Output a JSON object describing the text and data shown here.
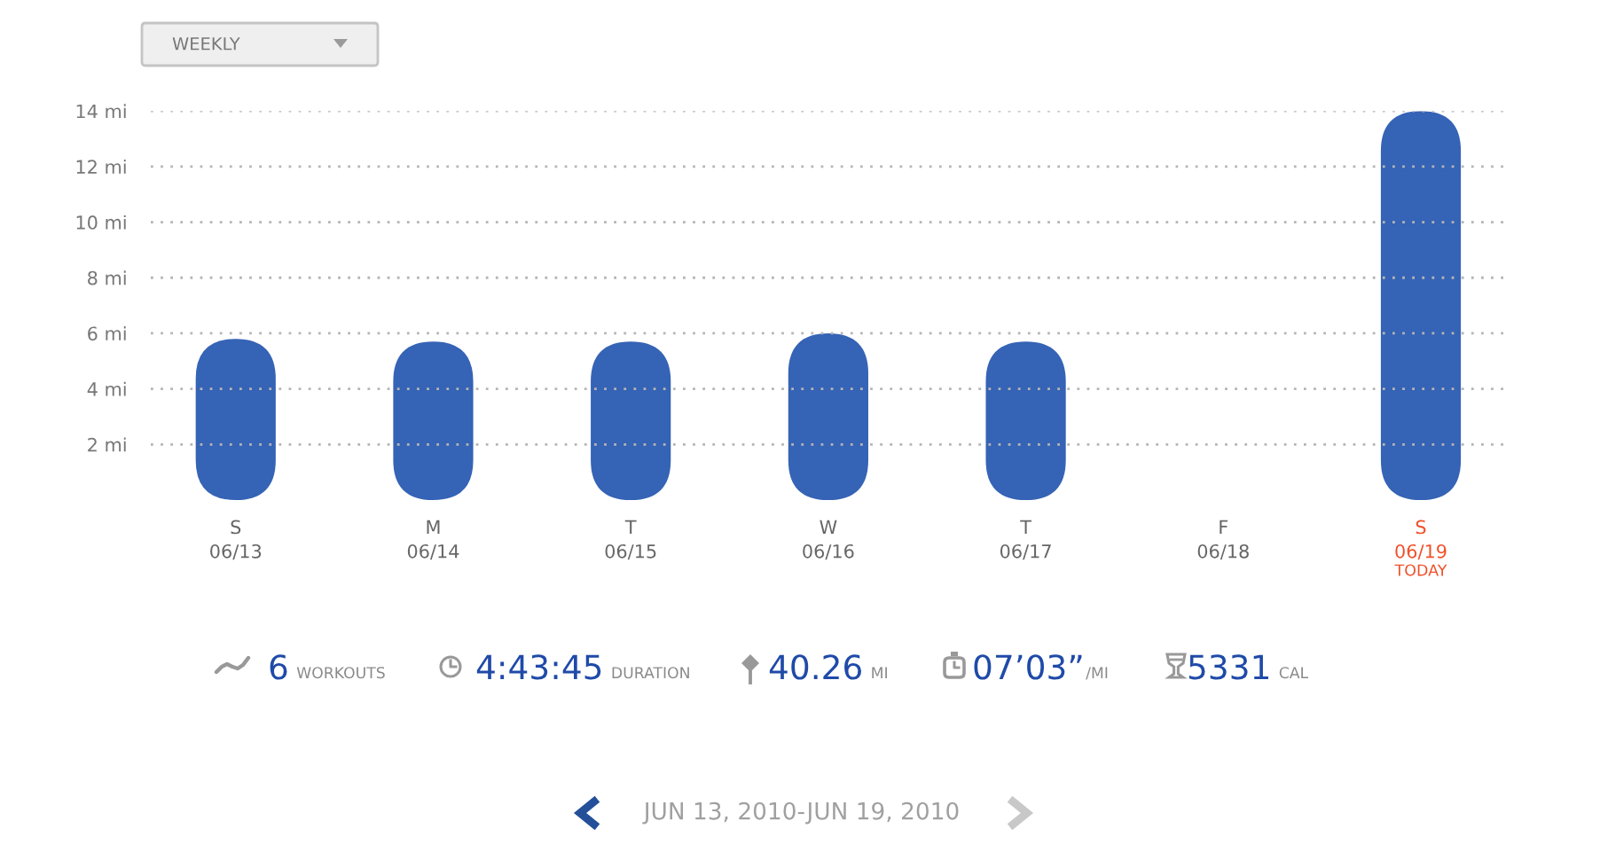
{
  "chart_data": {
    "type": "bar",
    "categories": [
      "S\n06/13",
      "M\n06/14",
      "T\n06/15",
      "W\n06/16",
      "T\n06/17",
      "F\n06/18",
      "S\n06/19"
    ],
    "values": [
      5.8,
      5.7,
      5.7,
      6.0,
      5.7,
      null,
      14.0
    ],
    "color": "#3563b5",
    "ylim": [
      0,
      14
    ],
    "yticks": [
      {
        "value": 2,
        "label": "2 mi"
      },
      {
        "value": 4,
        "label": "4 mi"
      },
      {
        "value": 6,
        "label": "6 mi"
      },
      {
        "value": 8,
        "label": "8 mi"
      },
      {
        "value": 10,
        "label": "10 mi"
      },
      {
        "value": 12,
        "label": "12 mi"
      },
      {
        "value": 14,
        "label": "14 mi"
      }
    ],
    "grid": "y",
    "annotations": [
      "WEEKLY",
      "6",
      "WORKOUTS",
      "4:43:45",
      "DURATION",
      "40.26",
      "MI",
      "07’03”",
      "/MI",
      "5331",
      "CAL",
      "JUN 13, 2010-JUN 19, 2010",
      "TODAY"
    ]
  }
}
